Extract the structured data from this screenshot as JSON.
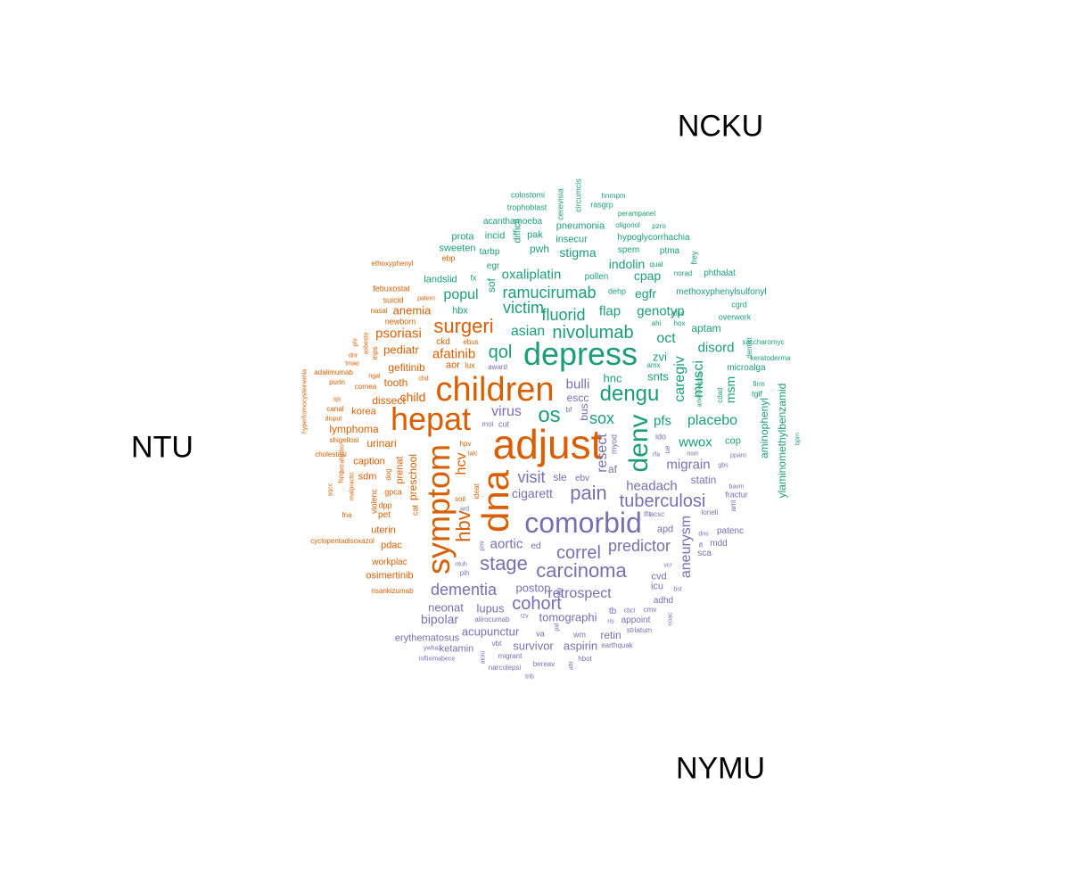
{
  "labels": {
    "ncku": "NCKU",
    "ntu": "NTU",
    "nymu": "NYMU"
  },
  "colors": {
    "NTU": "#d95f02",
    "NCKU": "#1b9e77",
    "NYMU": "#7570b3"
  },
  "words": [
    {
      "t": "adjust",
      "g": "NTU",
      "s": 46
    },
    {
      "t": "dna",
      "g": "NTU",
      "s": 42,
      "v": 1
    },
    {
      "t": "children",
      "g": "NTU",
      "s": 38
    },
    {
      "t": "hepat",
      "g": "NTU",
      "s": 36
    },
    {
      "t": "symptom",
      "g": "NTU",
      "s": 36,
      "v": 1
    },
    {
      "t": "hbv",
      "g": "NTU",
      "s": 22,
      "v": 1
    },
    {
      "t": "surgeri",
      "g": "NTU",
      "s": 22
    },
    {
      "t": "hcv",
      "g": "NTU",
      "s": 16,
      "v": 1
    },
    {
      "t": "psoriasi",
      "g": "NTU",
      "s": 15
    },
    {
      "t": "afatinib",
      "g": "NTU",
      "s": 15
    },
    {
      "t": "pediatr",
      "g": "NTU",
      "s": 13
    },
    {
      "t": "anemia",
      "g": "NTU",
      "s": 13
    },
    {
      "t": "gefitinib",
      "g": "NTU",
      "s": 12
    },
    {
      "t": "child",
      "g": "NTU",
      "s": 14
    },
    {
      "t": "tooth",
      "g": "NTU",
      "s": 12
    },
    {
      "t": "dissect",
      "g": "NTU",
      "s": 12
    },
    {
      "t": "korea",
      "g": "NTU",
      "s": 11
    },
    {
      "t": "lymphoma",
      "g": "NTU",
      "s": 12
    },
    {
      "t": "urinari",
      "g": "NTU",
      "s": 12
    },
    {
      "t": "caption",
      "g": "NTU",
      "s": 11
    },
    {
      "t": "preschool",
      "g": "NTU",
      "s": 12,
      "v": 1
    },
    {
      "t": "prenat",
      "g": "NTU",
      "s": 11,
      "v": 1
    },
    {
      "t": "sdm",
      "g": "NTU",
      "s": 11
    },
    {
      "t": "gpca",
      "g": "NTU",
      "s": 9
    },
    {
      "t": "violenc",
      "g": "NTU",
      "s": 9,
      "v": 1
    },
    {
      "t": "dpp",
      "g": "NTU",
      "s": 9
    },
    {
      "t": "pet",
      "g": "NTU",
      "s": 10
    },
    {
      "t": "cat",
      "g": "NTU",
      "s": 9,
      "v": 1
    },
    {
      "t": "uterin",
      "g": "NTU",
      "s": 11
    },
    {
      "t": "pdac",
      "g": "NTU",
      "s": 11
    },
    {
      "t": "workplac",
      "g": "NTU",
      "s": 10
    },
    {
      "t": "osimertinib",
      "g": "NTU",
      "s": 11
    },
    {
      "t": "risankizumab",
      "g": "NTU",
      "s": 8
    },
    {
      "t": "cyclopentadisoxazol",
      "g": "NTU",
      "s": 8
    },
    {
      "t": "fna",
      "g": "NTU",
      "s": 8
    },
    {
      "t": "sqcc",
      "g": "NTU",
      "s": 7,
      "v": 1
    },
    {
      "t": "fspg",
      "g": "NTU",
      "s": 7,
      "v": 1
    },
    {
      "t": "cholestasi",
      "g": "NTU",
      "s": 8
    },
    {
      "t": "shigellosi",
      "g": "NTU",
      "s": 8
    },
    {
      "t": "disput",
      "g": "NTU",
      "s": 7
    },
    {
      "t": "canal",
      "g": "NTU",
      "s": 8
    },
    {
      "t": "sjs",
      "g": "NTU",
      "s": 7
    },
    {
      "t": "purin",
      "g": "NTU",
      "s": 8
    },
    {
      "t": "cornea",
      "g": "NTU",
      "s": 8
    },
    {
      "t": "adalimumab",
      "g": "NTU",
      "s": 8
    },
    {
      "t": "tmao",
      "g": "NTU",
      "s": 7
    },
    {
      "t": "dnr",
      "g": "NTU",
      "s": 7
    },
    {
      "t": "asbesto",
      "g": "NTU",
      "s": 7,
      "v": 1
    },
    {
      "t": "phi",
      "g": "NTU",
      "s": 7,
      "v": 1
    },
    {
      "t": "newborn",
      "g": "NTU",
      "s": 9
    },
    {
      "t": "nasal",
      "g": "NTU",
      "s": 8
    },
    {
      "t": "suicid",
      "g": "NTU",
      "s": 9
    },
    {
      "t": "febuxostat",
      "g": "NTU",
      "s": 9
    },
    {
      "t": "ethoxyphenyl",
      "g": "NTU",
      "s": 8
    },
    {
      "t": "hyperhomocysteinemia",
      "g": "NTU",
      "s": 7,
      "v": 1
    },
    {
      "t": "mps",
      "g": "NTU",
      "s": 8,
      "v": 1
    },
    {
      "t": "ngal",
      "g": "NTU",
      "s": 7
    },
    {
      "t": "chd",
      "g": "NTU",
      "s": 7
    },
    {
      "t": "ckd",
      "g": "NTU",
      "s": 10
    },
    {
      "t": "aor",
      "g": "NTU",
      "s": 11
    },
    {
      "t": "lux",
      "g": "NTU",
      "s": 9
    },
    {
      "t": "ebus",
      "g": "NTU",
      "s": 8
    },
    {
      "t": "patern",
      "g": "NTU",
      "s": 7
    },
    {
      "t": "hpv",
      "g": "NTU",
      "s": 8
    },
    {
      "t": "talc",
      "g": "NTU",
      "s": 7
    },
    {
      "t": "soil",
      "g": "NTU",
      "s": 8
    },
    {
      "t": "ideat",
      "g": "NTU",
      "s": 8,
      "v": 1
    },
    {
      "t": "ebp",
      "g": "NTU",
      "s": 9
    },
    {
      "t": "tetrahydro",
      "g": "NTU",
      "s": 7,
      "v": 1
    },
    {
      "t": "malpractic",
      "g": "NTU",
      "s": 7,
      "v": 1
    },
    {
      "t": "dog",
      "g": "NTU",
      "s": 8,
      "v": 1
    },
    {
      "t": "depress",
      "g": "NCKU",
      "s": 36
    },
    {
      "t": "denv",
      "g": "NCKU",
      "s": 30,
      "v": 1
    },
    {
      "t": "dengu",
      "g": "NCKU",
      "s": 24
    },
    {
      "t": "os",
      "g": "NCKU",
      "s": 24
    },
    {
      "t": "nivolumab",
      "g": "NCKU",
      "s": 20
    },
    {
      "t": "qol",
      "g": "NCKU",
      "s": 20
    },
    {
      "t": "ramucirumab",
      "g": "NCKU",
      "s": 18
    },
    {
      "t": "fluorid",
      "g": "NCKU",
      "s": 18
    },
    {
      "t": "victim",
      "g": "NCKU",
      "s": 18
    },
    {
      "t": "sox",
      "g": "NCKU",
      "s": 18
    },
    {
      "t": "asian",
      "g": "NCKU",
      "s": 16
    },
    {
      "t": "oct",
      "g": "NCKU",
      "s": 16
    },
    {
      "t": "placebo",
      "g": "NCKU",
      "s": 16
    },
    {
      "t": "caregiv",
      "g": "NCKU",
      "s": 16,
      "v": 1
    },
    {
      "t": "musci",
      "g": "NCKU",
      "s": 16,
      "v": 1
    },
    {
      "t": "popul",
      "g": "NCKU",
      "s": 16
    },
    {
      "t": "oxaliplatin",
      "g": "NCKU",
      "s": 15
    },
    {
      "t": "genotyp",
      "g": "NCKU",
      "s": 15
    },
    {
      "t": "flap",
      "g": "NCKU",
      "s": 15
    },
    {
      "t": "egfr",
      "g": "NCKU",
      "s": 14
    },
    {
      "t": "cpap",
      "g": "NCKU",
      "s": 14
    },
    {
      "t": "indolin",
      "g": "NCKU",
      "s": 14
    },
    {
      "t": "stigma",
      "g": "NCKU",
      "s": 14
    },
    {
      "t": "disord",
      "g": "NCKU",
      "s": 15
    },
    {
      "t": "pfs",
      "g": "NCKU",
      "s": 15
    },
    {
      "t": "msm",
      "g": "NCKU",
      "s": 14,
      "v": 1
    },
    {
      "t": "snts",
      "g": "NCKU",
      "s": 13
    },
    {
      "t": "zvi",
      "g": "NCKU",
      "s": 13
    },
    {
      "t": "hnc",
      "g": "NCKU",
      "s": 13
    },
    {
      "t": "aptam",
      "g": "NCKU",
      "s": 12
    },
    {
      "t": "pwh",
      "g": "NCKU",
      "s": 12
    },
    {
      "t": "landslid",
      "g": "NCKU",
      "s": 11
    },
    {
      "t": "hbx",
      "g": "NCKU",
      "s": 11
    },
    {
      "t": "sof",
      "g": "NCKU",
      "s": 12,
      "v": 1
    },
    {
      "t": "fx",
      "g": "NCKU",
      "s": 9
    },
    {
      "t": "egr",
      "g": "NCKU",
      "s": 10
    },
    {
      "t": "tarbp",
      "g": "NCKU",
      "s": 10
    },
    {
      "t": "sweeten",
      "g": "NCKU",
      "s": 11
    },
    {
      "t": "incid",
      "g": "NCKU",
      "s": 11
    },
    {
      "t": "prota",
      "g": "NCKU",
      "s": 11
    },
    {
      "t": "pak",
      "g": "NCKU",
      "s": 11
    },
    {
      "t": "difficil",
      "g": "NCKU",
      "s": 11,
      "v": 1
    },
    {
      "t": "insecur",
      "g": "NCKU",
      "s": 11
    },
    {
      "t": "pneumonia",
      "g": "NCKU",
      "s": 11
    },
    {
      "t": "acanthamoeba",
      "g": "NCKU",
      "s": 10
    },
    {
      "t": "trophoblast",
      "g": "NCKU",
      "s": 9
    },
    {
      "t": "colostomi",
      "g": "NCKU",
      "s": 9
    },
    {
      "t": "cerevisia",
      "g": "NCKU",
      "s": 9,
      "v": 1
    },
    {
      "t": "circumcis",
      "g": "NCKU",
      "s": 9,
      "v": 1
    },
    {
      "t": "rasgrp",
      "g": "NCKU",
      "s": 9
    },
    {
      "t": "hnrnpm",
      "g": "NCKU",
      "s": 8
    },
    {
      "t": "perampanel",
      "g": "NCKU",
      "s": 8
    },
    {
      "t": "oligonol",
      "g": "NCKU",
      "s": 8
    },
    {
      "t": "pzro",
      "g": "NCKU",
      "s": 8
    },
    {
      "t": "hypoglycorrhachia",
      "g": "NCKU",
      "s": 10
    },
    {
      "t": "spem",
      "g": "NCKU",
      "s": 10
    },
    {
      "t": "ptma",
      "g": "NCKU",
      "s": 10
    },
    {
      "t": "frey",
      "g": "NCKU",
      "s": 9,
      "v": 1
    },
    {
      "t": "qual",
      "g": "NCKU",
      "s": 8
    },
    {
      "t": "norad",
      "g": "NCKU",
      "s": 8
    },
    {
      "t": "phthalat",
      "g": "NCKU",
      "s": 10
    },
    {
      "t": "pollen",
      "g": "NCKU",
      "s": 10
    },
    {
      "t": "dehp",
      "g": "NCKU",
      "s": 9
    },
    {
      "t": "methoxyphenylsulfonyl",
      "g": "NCKU",
      "s": 10
    },
    {
      "t": "cgrd",
      "g": "NCKU",
      "s": 9
    },
    {
      "t": "overwork",
      "g": "NCKU",
      "s": 9
    },
    {
      "t": "afsc",
      "g": "NCKU",
      "s": 8
    },
    {
      "t": "ahi",
      "g": "NCKU",
      "s": 8
    },
    {
      "t": "hox",
      "g": "NCKU",
      "s": 8
    },
    {
      "t": "saccharomyc",
      "g": "NCKU",
      "s": 8
    },
    {
      "t": "keratoderma",
      "g": "NCKU",
      "s": 8
    },
    {
      "t": "microalga",
      "g": "NCKU",
      "s": 10
    },
    {
      "t": "dentist",
      "g": "NCKU",
      "s": 8,
      "v": 1
    },
    {
      "t": "firm",
      "g": "NCKU",
      "s": 8
    },
    {
      "t": "tgif",
      "g": "NCKU",
      "s": 9
    },
    {
      "t": "cdad",
      "g": "NCKU",
      "s": 8,
      "v": 1
    },
    {
      "t": "arteriovenou",
      "g": "NCKU",
      "s": 7,
      "v": 1
    },
    {
      "t": "amx",
      "g": "NCKU",
      "s": 8
    },
    {
      "t": "aminophenyl",
      "g": "NCKU",
      "s": 12,
      "v": 1
    },
    {
      "t": "ylaminomethylbenzamid",
      "g": "NCKU",
      "s": 12,
      "v": 1
    },
    {
      "t": "wwox",
      "g": "NCKU",
      "s": 15
    },
    {
      "t": "cop",
      "g": "NCKU",
      "s": 11
    },
    {
      "t": "bprn",
      "g": "NCKU",
      "s": 7,
      "v": 1
    },
    {
      "t": "comorbid",
      "g": "NYMU",
      "s": 32
    },
    {
      "t": "tuberculosi",
      "g": "NYMU",
      "s": 20
    },
    {
      "t": "stage",
      "g": "NYMU",
      "s": 22
    },
    {
      "t": "carcinoma",
      "g": "NYMU",
      "s": 22
    },
    {
      "t": "correl",
      "g": "NYMU",
      "s": 20
    },
    {
      "t": "cohort",
      "g": "NYMU",
      "s": 20
    },
    {
      "t": "pain",
      "g": "NYMU",
      "s": 22
    },
    {
      "t": "predictor",
      "g": "NYMU",
      "s": 18
    },
    {
      "t": "dementia",
      "g": "NYMU",
      "s": 18
    },
    {
      "t": "visit",
      "g": "NYMU",
      "s": 18
    },
    {
      "t": "virus",
      "g": "NYMU",
      "s": 16
    },
    {
      "t": "resect",
      "g": "NYMU",
      "s": 16,
      "v": 1
    },
    {
      "t": "retrospect",
      "g": "NYMU",
      "s": 16
    },
    {
      "t": "aneurysm",
      "g": "NYMU",
      "s": 16,
      "v": 1
    },
    {
      "t": "headach",
      "g": "NYMU",
      "s": 15
    },
    {
      "t": "migrain",
      "g": "NYMU",
      "s": 15
    },
    {
      "t": "aortic",
      "g": "NYMU",
      "s": 15
    },
    {
      "t": "bulli",
      "g": "NYMU",
      "s": 15
    },
    {
      "t": "bipolar",
      "g": "NYMU",
      "s": 14
    },
    {
      "t": "cigarett",
      "g": "NYMU",
      "s": 14
    },
    {
      "t": "postop",
      "g": "NYMU",
      "s": 13
    },
    {
      "t": "neonat",
      "g": "NYMU",
      "s": 13
    },
    {
      "t": "acupunctur",
      "g": "NYMU",
      "s": 13
    },
    {
      "t": "lupus",
      "g": "NYMU",
      "s": 13
    },
    {
      "t": "tomographi",
      "g": "NYMU",
      "s": 13
    },
    {
      "t": "survivor",
      "g": "NYMU",
      "s": 13
    },
    {
      "t": "aspirin",
      "g": "NYMU",
      "s": 13
    },
    {
      "t": "retin",
      "g": "NYMU",
      "s": 12
    },
    {
      "t": "statin",
      "g": "NYMU",
      "s": 12
    },
    {
      "t": "erythematosus",
      "g": "NYMU",
      "s": 11
    },
    {
      "t": "ketamin",
      "g": "NYMU",
      "s": 11
    },
    {
      "t": "sle",
      "g": "NYMU",
      "s": 12
    },
    {
      "t": "escc",
      "g": "NYMU",
      "s": 12
    },
    {
      "t": "af",
      "g": "NYMU",
      "s": 12
    },
    {
      "t": "bus",
      "g": "NYMU",
      "s": 12,
      "v": 1
    },
    {
      "t": "myod",
      "g": "NYMU",
      "s": 9,
      "v": 1
    },
    {
      "t": "ebv",
      "g": "NYMU",
      "s": 10
    },
    {
      "t": "ed",
      "g": "NYMU",
      "s": 10
    },
    {
      "t": "bf",
      "g": "NYMU",
      "s": 8
    },
    {
      "t": "cvd",
      "g": "NYMU",
      "s": 11
    },
    {
      "t": "icu",
      "g": "NYMU",
      "s": 11
    },
    {
      "t": "adhd",
      "g": "NYMU",
      "s": 10
    },
    {
      "t": "cmv",
      "g": "NYMU",
      "s": 8
    },
    {
      "t": "tb",
      "g": "NYMU",
      "s": 10
    },
    {
      "t": "appoint",
      "g": "NYMU",
      "s": 10
    },
    {
      "t": "patenc",
      "g": "NYMU",
      "s": 10
    },
    {
      "t": "sca",
      "g": "NYMU",
      "s": 10
    },
    {
      "t": "mdd",
      "g": "NYMU",
      "s": 10
    },
    {
      "t": "ifit",
      "g": "NYMU",
      "s": 8
    },
    {
      "t": "apd",
      "g": "NYMU",
      "s": 11
    },
    {
      "t": "acsc",
      "g": "NYMU",
      "s": 8
    },
    {
      "t": "ido",
      "g": "NYMU",
      "s": 9
    },
    {
      "t": "ue",
      "g": "NYMU",
      "s": 8,
      "v": 1
    },
    {
      "t": "rfa",
      "g": "NYMU",
      "s": 7
    },
    {
      "t": "nsm",
      "g": "NYMU",
      "s": 7
    },
    {
      "t": "gbs",
      "g": "NYMU",
      "s": 7
    },
    {
      "t": "pparo",
      "g": "NYMU",
      "s": 7
    },
    {
      "t": "bavm",
      "g": "NYMU",
      "s": 7
    },
    {
      "t": "fractur",
      "g": "NYMU",
      "s": 9
    },
    {
      "t": "loneli",
      "g": "NYMU",
      "s": 8
    },
    {
      "t": "ami",
      "g": "NYMU",
      "s": 8,
      "v": 1
    },
    {
      "t": "dns",
      "g": "NYMU",
      "s": 7
    },
    {
      "t": "ifi",
      "g": "NYMU",
      "s": 7
    },
    {
      "t": "vcr",
      "g": "NYMU",
      "s": 7
    },
    {
      "t": "bst",
      "g": "NYMU",
      "s": 7
    },
    {
      "t": "noac",
      "g": "NYMU",
      "s": 7,
      "v": 1
    },
    {
      "t": "striatum",
      "g": "NYMU",
      "s": 8
    },
    {
      "t": "ris",
      "g": "NYMU",
      "s": 7
    },
    {
      "t": "cbct",
      "g": "NYMU",
      "s": 7
    },
    {
      "t": "earthquak",
      "g": "NYMU",
      "s": 8
    },
    {
      "t": "hbot",
      "g": "NYMU",
      "s": 8
    },
    {
      "t": "bereav",
      "g": "NYMU",
      "s": 8
    },
    {
      "t": "trib",
      "g": "NYMU",
      "s": 7
    },
    {
      "t": "narcolepsi",
      "g": "NYMU",
      "s": 8
    },
    {
      "t": "migrant",
      "g": "NYMU",
      "s": 8
    },
    {
      "t": "vbt",
      "g": "NYMU",
      "s": 8
    },
    {
      "t": "aiolo",
      "g": "NYMU",
      "s": 7,
      "v": 1
    },
    {
      "t": "attr",
      "g": "NYMU",
      "s": 7,
      "v": 1
    },
    {
      "t": "wm",
      "g": "NYMU",
      "s": 9
    },
    {
      "t": "va",
      "g": "NYMU",
      "s": 9
    },
    {
      "t": "pid",
      "g": "NYMU",
      "s": 7,
      "v": 1
    },
    {
      "t": "rzv",
      "g": "NYMU",
      "s": 7
    },
    {
      "t": "alirocumab",
      "g": "NYMU",
      "s": 8
    },
    {
      "t": "infliximabece",
      "g": "NYMU",
      "s": 7
    },
    {
      "t": "ywhaz",
      "g": "NYMU",
      "s": 7
    },
    {
      "t": "albi",
      "g": "NYMU",
      "s": 7,
      "v": 1
    },
    {
      "t": "pih",
      "g": "NYMU",
      "s": 8
    },
    {
      "t": "ntuh",
      "g": "NYMU",
      "s": 7
    },
    {
      "t": "pmi",
      "g": "NYMU",
      "s": 7,
      "v": 1
    },
    {
      "t": "award",
      "g": "NYMU",
      "s": 8
    },
    {
      "t": "moi",
      "g": "NYMU",
      "s": 8
    },
    {
      "t": "cut",
      "g": "NYMU",
      "s": 9
    },
    {
      "t": "ard",
      "g": "NYMU",
      "s": 7
    }
  ]
}
